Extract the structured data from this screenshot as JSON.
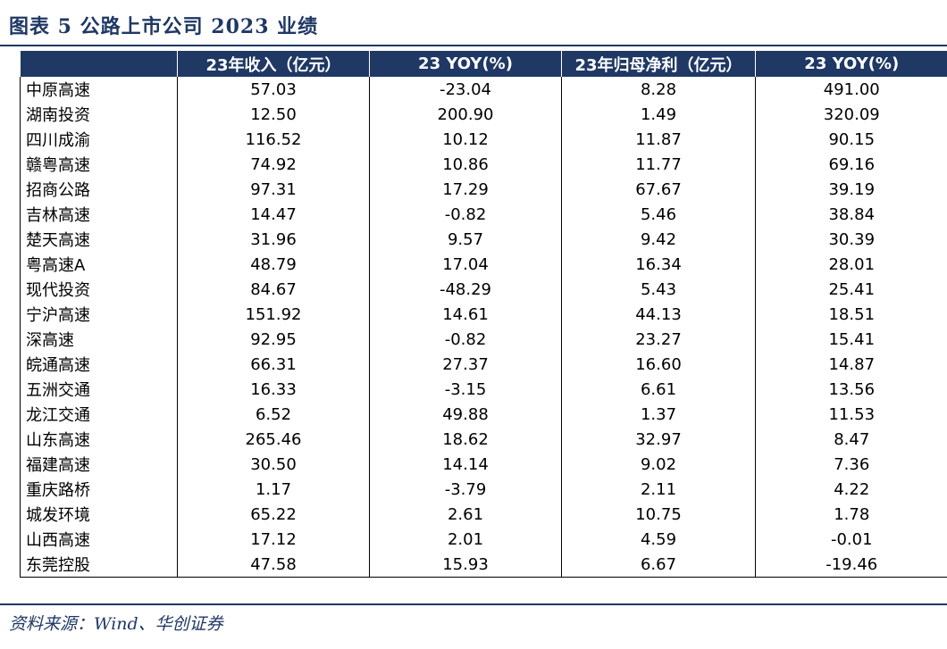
{
  "title": "图表 5 公路上市公司 2023 业绩",
  "table": {
    "header": [
      "",
      "23年收入（亿元）",
      "23 YOY(%)",
      "23年归母净利（亿元）",
      "23 YOY(%)"
    ],
    "rows": [
      [
        "中原高速",
        "57.03",
        "-23.04",
        "8.28",
        "491.00"
      ],
      [
        "湖南投资",
        "12.50",
        "200.90",
        "1.49",
        "320.09"
      ],
      [
        "四川成渝",
        "116.52",
        "10.12",
        "11.87",
        "90.15"
      ],
      [
        "赣粤高速",
        "74.92",
        "10.86",
        "11.77",
        "69.16"
      ],
      [
        "招商公路",
        "97.31",
        "17.29",
        "67.67",
        "39.19"
      ],
      [
        "吉林高速",
        "14.47",
        "-0.82",
        "5.46",
        "38.84"
      ],
      [
        "楚天高速",
        "31.96",
        "9.57",
        "9.42",
        "30.39"
      ],
      [
        "粤高速A",
        "48.79",
        "17.04",
        "16.34",
        "28.01"
      ],
      [
        "现代投资",
        "84.67",
        "-48.29",
        "5.43",
        "25.41"
      ],
      [
        "宁沪高速",
        "151.92",
        "14.61",
        "44.13",
        "18.51"
      ],
      [
        "深高速",
        "92.95",
        "-0.82",
        "23.27",
        "15.41"
      ],
      [
        "皖通高速",
        "66.31",
        "27.37",
        "16.60",
        "14.87"
      ],
      [
        "五洲交通",
        "16.33",
        "-3.15",
        "6.61",
        "13.56"
      ],
      [
        "龙江交通",
        "6.52",
        "49.88",
        "1.37",
        "11.53"
      ],
      [
        "山东高速",
        "265.46",
        "18.62",
        "32.97",
        "8.47"
      ],
      [
        "福建高速",
        "30.50",
        "14.14",
        "9.02",
        "7.36"
      ],
      [
        "重庆路桥",
        "1.17",
        "-3.79",
        "2.11",
        "4.22"
      ],
      [
        "城发环境",
        "65.22",
        "2.61",
        "10.75",
        "1.78"
      ],
      [
        "山西高速",
        "17.12",
        "2.01",
        "4.59",
        "-0.01"
      ],
      [
        "东莞控股",
        "47.58",
        "15.93",
        "6.67",
        "-19.46"
      ]
    ]
  },
  "source": "资料来源：Wind、华创证券"
}
